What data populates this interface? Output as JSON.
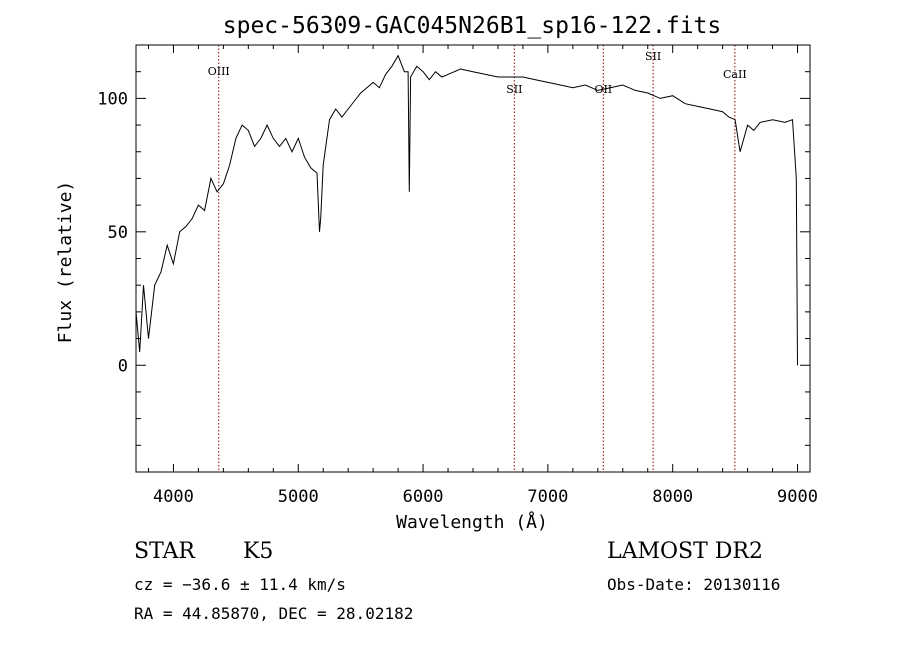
{
  "chart_data": {
    "type": "line",
    "title": "spec-56309-GAC045N26B1_sp16-122.fits",
    "xlabel": "Wavelength (Å)",
    "ylabel": "Flux (relative)",
    "xlim": [
      3700,
      9100
    ],
    "ylim": [
      -40,
      120
    ],
    "xticks": [
      4000,
      5000,
      6000,
      7000,
      8000,
      9000
    ],
    "yticks": [
      0,
      50,
      100
    ],
    "grid": false,
    "series": [
      {
        "x": [
          3700,
          3730,
          3760,
          3800,
          3850,
          3900,
          3950,
          4000,
          4050,
          4100,
          4150,
          4200,
          4250,
          4300,
          4350,
          4400,
          4450,
          4500,
          4550,
          4600,
          4650,
          4700,
          4750,
          4800,
          4850,
          4900,
          4950,
          5000,
          5050,
          5100,
          5150,
          5170,
          5180,
          5200,
          5250,
          5300,
          5350,
          5400,
          5450,
          5500,
          5550,
          5600,
          5650,
          5700,
          5750,
          5800,
          5850,
          5880,
          5890,
          5900,
          5950,
          6000,
          6050,
          6100,
          6150,
          6200,
          6300,
          6400,
          6500,
          6600,
          6700,
          6800,
          6900,
          7000,
          7100,
          7200,
          7300,
          7400,
          7500,
          7600,
          7700,
          7800,
          7900,
          8000,
          8100,
          8200,
          8300,
          8400,
          8450,
          8500,
          8540,
          8600,
          8650,
          8700,
          8800,
          8900,
          8960,
          8990,
          9000
        ],
        "y": [
          20,
          5,
          30,
          10,
          30,
          35,
          45,
          38,
          50,
          52,
          55,
          60,
          58,
          70,
          65,
          68,
          75,
          85,
          90,
          88,
          82,
          85,
          90,
          85,
          82,
          85,
          80,
          85,
          78,
          74,
          72,
          50,
          55,
          75,
          92,
          96,
          93,
          96,
          99,
          102,
          104,
          106,
          104,
          109,
          112,
          116,
          110,
          110,
          65,
          108,
          112,
          110,
          107,
          110,
          108,
          109,
          111,
          110,
          109,
          108,
          108,
          108,
          107,
          106,
          105,
          104,
          105,
          103,
          104,
          105,
          103,
          102,
          100,
          101,
          98,
          97,
          96,
          95,
          93,
          92,
          80,
          90,
          88,
          91,
          92,
          91,
          92,
          70,
          0
        ]
      }
    ],
    "lines": [
      {
        "x": 4363,
        "label": "OIII"
      },
      {
        "x": 6731,
        "label": "SII"
      },
      {
        "x": 7444,
        "label": "OII"
      },
      {
        "x": 7843,
        "label": "SII"
      },
      {
        "x": 8498,
        "label": "CaII"
      }
    ]
  },
  "footer": {
    "object_type": "STAR",
    "subclass": "K5",
    "survey": "LAMOST DR2",
    "cz": "cz = −36.6 ± 11.4 km/s",
    "obs_date": "Obs-Date: 20130116",
    "coords": "RA =  44.85870, DEC =  28.02182"
  }
}
